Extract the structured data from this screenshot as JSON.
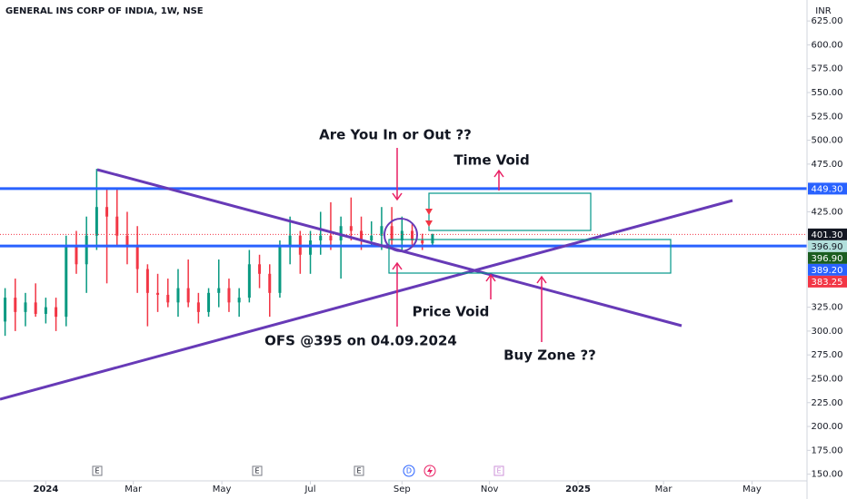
{
  "chart_data": {
    "type": "candlestick",
    "title": "GENERAL INS CORP OF INDIA, 1W, NSE",
    "currency": "INR",
    "up_color": "#089981",
    "down_color": "#f23645",
    "x": [
      -4,
      -3,
      -2,
      -1,
      0,
      1,
      2,
      3,
      4,
      5,
      6,
      7,
      8,
      9,
      10,
      11,
      12,
      13,
      14,
      15,
      16,
      17,
      18,
      19,
      20,
      21,
      22,
      23,
      24,
      25,
      26,
      27,
      28,
      29,
      30,
      31,
      32,
      33,
      34,
      35,
      36,
      37,
      38
    ],
    "open": [
      310,
      335,
      320,
      330,
      318,
      325,
      315,
      390,
      370,
      400,
      430,
      420,
      400,
      390,
      365,
      340,
      338,
      330,
      345,
      330,
      320,
      340,
      345,
      330,
      335,
      370,
      360,
      340,
      390,
      400,
      380,
      395,
      400,
      395,
      410,
      405,
      395,
      400,
      410,
      395,
      405,
      395,
      392
    ],
    "high": [
      345,
      355,
      340,
      350,
      335,
      335,
      400,
      405,
      420,
      470,
      450,
      450,
      425,
      410,
      370,
      360,
      355,
      365,
      375,
      340,
      345,
      375,
      355,
      345,
      385,
      380,
      370,
      395,
      420,
      405,
      405,
      425,
      435,
      420,
      440,
      420,
      415,
      430,
      430,
      420,
      412,
      402,
      402
    ],
    "low": [
      295,
      300,
      305,
      315,
      308,
      300,
      305,
      360,
      340,
      385,
      350,
      390,
      370,
      340,
      305,
      320,
      325,
      315,
      325,
      308,
      315,
      325,
      320,
      315,
      330,
      345,
      315,
      335,
      370,
      360,
      360,
      380,
      385,
      355,
      395,
      385,
      390,
      385,
      390,
      385,
      390,
      385,
      389
    ],
    "close": [
      335,
      320,
      330,
      318,
      325,
      315,
      390,
      370,
      400,
      430,
      420,
      400,
      390,
      365,
      340,
      338,
      330,
      345,
      330,
      320,
      340,
      345,
      330,
      335,
      370,
      360,
      340,
      390,
      400,
      380,
      395,
      400,
      395,
      410,
      405,
      395,
      400,
      410,
      395,
      405,
      395,
      392,
      401.3
    ],
    "xlim": [
      -4.5,
      74.8
    ],
    "xticks": [
      {
        "value": 0,
        "label": "2024"
      },
      {
        "value": 8.6,
        "label": "Mar"
      },
      {
        "value": 17.3,
        "label": "May"
      },
      {
        "value": 26,
        "label": "Jul"
      },
      {
        "value": 35,
        "label": "Sep"
      },
      {
        "value": 43.6,
        "label": "Nov"
      },
      {
        "value": 52.3,
        "label": "2025"
      },
      {
        "value": 60.7,
        "label": "Mar"
      },
      {
        "value": 69.4,
        "label": "May"
      }
    ],
    "ylim": [
      143,
      647
    ],
    "yticks": [
      {
        "value": 625,
        "label": "625.00"
      },
      {
        "value": 600,
        "label": "600.00"
      },
      {
        "value": 575,
        "label": "575.00"
      },
      {
        "value": 550,
        "label": "550.00"
      },
      {
        "value": 525,
        "label": "525.00"
      },
      {
        "value": 500,
        "label": "500.00"
      },
      {
        "value": 475,
        "label": "475.00"
      },
      {
        "value": 425,
        "label": "425.00"
      },
      {
        "value": 325,
        "label": "325.00"
      },
      {
        "value": 300,
        "label": "300.00"
      },
      {
        "value": 275,
        "label": "275.00"
      },
      {
        "value": 250,
        "label": "250.00"
      },
      {
        "value": 225,
        "label": "225.00"
      },
      {
        "value": 200,
        "label": "200.00"
      },
      {
        "value": 175,
        "label": "175.00"
      },
      {
        "value": 150,
        "label": "150.00"
      }
    ],
    "price_labels": [
      {
        "value": 449.3,
        "label": "449.30",
        "color": "#2962ff",
        "line": "solid"
      },
      {
        "value": 401.3,
        "label": "401.30",
        "color": "#131722",
        "line": "dotted"
      },
      {
        "value": 396.9,
        "label": "396.90",
        "color": "#b2dfdb"
      },
      {
        "value": 396.9,
        "label": "396.90",
        "color": "#1b5e20"
      },
      {
        "value": 389.2,
        "label": "389.20",
        "color": "#2962ff",
        "line": "solid"
      },
      {
        "value": 383.25,
        "label": "383.25",
        "color": "#f23645"
      }
    ],
    "events": [
      "E",
      "E",
      "E",
      "D",
      "E"
    ],
    "annotations": [
      "Are You In or Out ??",
      "Time Void",
      "Price Void",
      "OFS @395 on 04.09.2024",
      "Buy Zone ??"
    ]
  }
}
